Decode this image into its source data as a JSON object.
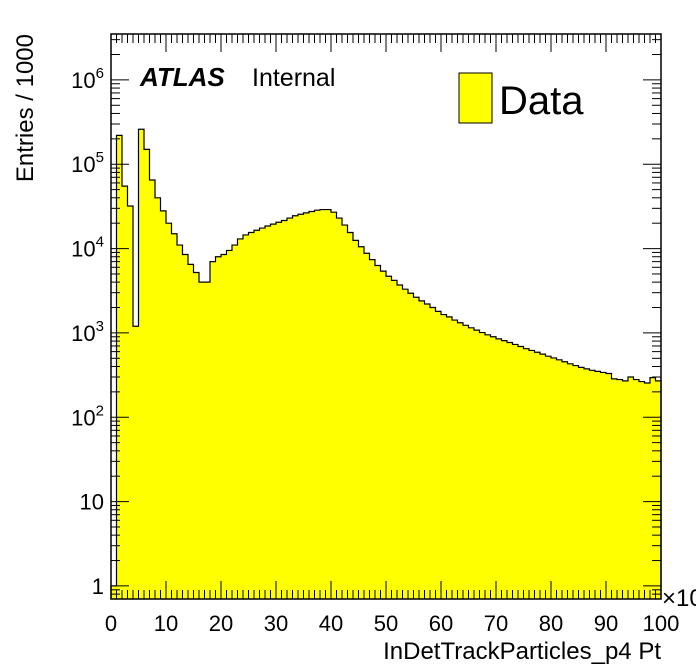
{
  "chart_data": {
    "type": "bar",
    "style": "filled-step-histogram",
    "xlabel": "InDetTrackParticles_p4 Pt",
    "ylabel": "Entries / 1000",
    "x_multiplier": "×10",
    "label_atlas": "ATLAS",
    "label_status": "Internal",
    "xlim": [
      0,
      100
    ],
    "ylim": [
      0.7,
      3500000
    ],
    "log_y": true,
    "grid": false,
    "legend": {
      "position": "top-right",
      "entries": [
        {
          "label": "Data",
          "fill": "#ffff00"
        }
      ]
    },
    "x_ticks": [
      "0",
      "10",
      "20",
      "30",
      "40",
      "50",
      "60",
      "70",
      "80",
      "90",
      "100"
    ],
    "y_ticks": [
      {
        "value": 1,
        "base": "1",
        "exp": ""
      },
      {
        "value": 10,
        "base": "10",
        "exp": ""
      },
      {
        "value": 100,
        "base": "10",
        "exp": "2"
      },
      {
        "value": 1000,
        "base": "10",
        "exp": "3"
      },
      {
        "value": 10000,
        "base": "10",
        "exp": "4"
      },
      {
        "value": 100000,
        "base": "10",
        "exp": "5"
      },
      {
        "value": 1000000,
        "base": "10",
        "exp": "6"
      }
    ],
    "bin_width": 1,
    "x_start": 0,
    "values": [
      1,
      220000,
      55000,
      32000,
      1200,
      260000,
      150000,
      65000,
      40000,
      28000,
      20000,
      15000,
      11000,
      8500,
      6500,
      5200,
      4000,
      4000,
      7000,
      8000,
      8500,
      9500,
      11000,
      13000,
      14500,
      15500,
      16500,
      17500,
      18500,
      19500,
      20500,
      21500,
      23000,
      24500,
      25500,
      26500,
      27500,
      28500,
      29000,
      29000,
      27000,
      23000,
      19000,
      15500,
      12500,
      10500,
      8800,
      7400,
      6300,
      5400,
      4700,
      4200,
      3700,
      3300,
      2950,
      2650,
      2400,
      2200,
      2000,
      1800,
      1650,
      1550,
      1420,
      1320,
      1230,
      1150,
      1080,
      1010,
      950,
      900,
      850,
      810,
      770,
      730,
      690,
      650,
      620,
      590,
      560,
      530,
      505,
      480,
      455,
      430,
      410,
      390,
      375,
      360,
      350,
      340,
      330,
      285,
      280,
      270,
      300,
      280,
      265,
      255,
      295,
      270
    ],
    "fill_color": "#ffff00",
    "line_color": "#000000"
  }
}
